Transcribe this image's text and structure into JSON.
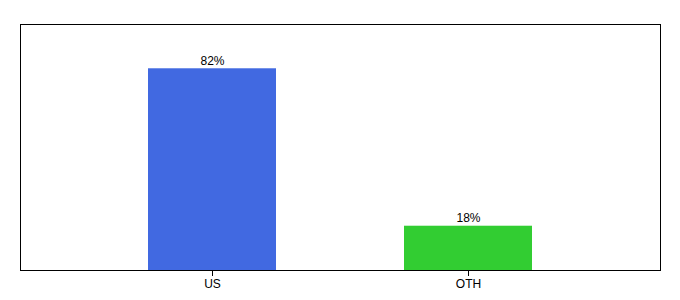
{
  "chart_data": {
    "type": "bar",
    "categories": [
      "US",
      "OTH"
    ],
    "values": [
      82,
      18
    ],
    "value_labels": [
      "82%",
      "18%"
    ],
    "colors": [
      "#4169e1",
      "#32cd32"
    ],
    "ylim": [
      0,
      100
    ],
    "data_labels": true,
    "tick_labels": "x"
  }
}
